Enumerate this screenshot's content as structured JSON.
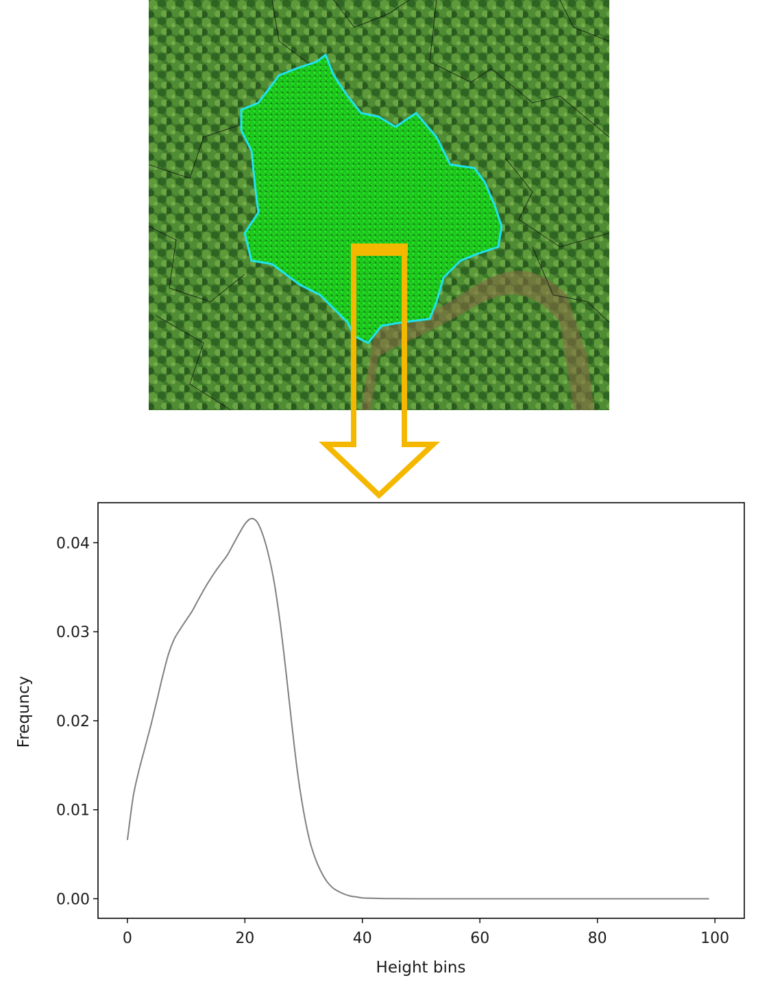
{
  "aerial_image": {
    "description_icons": [
      "aerial-forest-image",
      "tree-crown-boundary",
      "point-cloud-points"
    ],
    "colors": {
      "canopy": "#3d7a2a",
      "crown_outline": "#1fe3f0",
      "points": "#19e619",
      "arrow": "#f5b800"
    }
  },
  "chart_data": {
    "type": "line",
    "title": "",
    "xlabel": "Height bins",
    "ylabel": "Frequncy",
    "xlim": [
      -5,
      105
    ],
    "ylim": [
      -0.0022,
      0.0445
    ],
    "xticks": [
      0,
      20,
      40,
      60,
      80,
      100
    ],
    "xtick_labels": [
      "0",
      "20",
      "40",
      "60",
      "80",
      "100"
    ],
    "yticks": [
      0.0,
      0.01,
      0.02,
      0.03,
      0.04
    ],
    "ytick_labels": [
      "0.00",
      "0.01",
      "0.02",
      "0.03",
      "0.04"
    ],
    "grid": false,
    "line_color": "#7f7f7f",
    "series": [
      {
        "x": [
          0,
          1,
          2,
          3,
          4,
          5,
          6,
          7,
          8,
          9,
          10,
          11,
          12,
          13,
          14,
          15,
          16,
          17,
          18,
          19,
          20,
          21,
          22,
          23,
          24,
          25,
          26,
          27,
          28,
          29,
          30,
          31,
          32,
          33,
          34,
          35,
          36,
          37,
          38,
          39,
          40,
          42,
          44,
          46,
          50,
          60,
          70,
          80,
          90,
          99
        ],
        "values": [
          0.0066,
          0.0115,
          0.0145,
          0.017,
          0.0195,
          0.0222,
          0.025,
          0.0275,
          0.0292,
          0.0303,
          0.0313,
          0.0323,
          0.0335,
          0.0347,
          0.0358,
          0.0368,
          0.0377,
          0.0386,
          0.0398,
          0.041,
          0.0421,
          0.0427,
          0.0424,
          0.041,
          0.0387,
          0.0355,
          0.031,
          0.0255,
          0.0195,
          0.014,
          0.0098,
          0.0066,
          0.0045,
          0.003,
          0.0019,
          0.0012,
          0.0008,
          0.0005,
          0.0003,
          0.0002,
          0.0001,
          5e-05,
          2e-05,
          1e-05,
          0.0,
          0.0,
          0.0,
          0.0,
          0.0,
          0.0
        ]
      }
    ]
  }
}
